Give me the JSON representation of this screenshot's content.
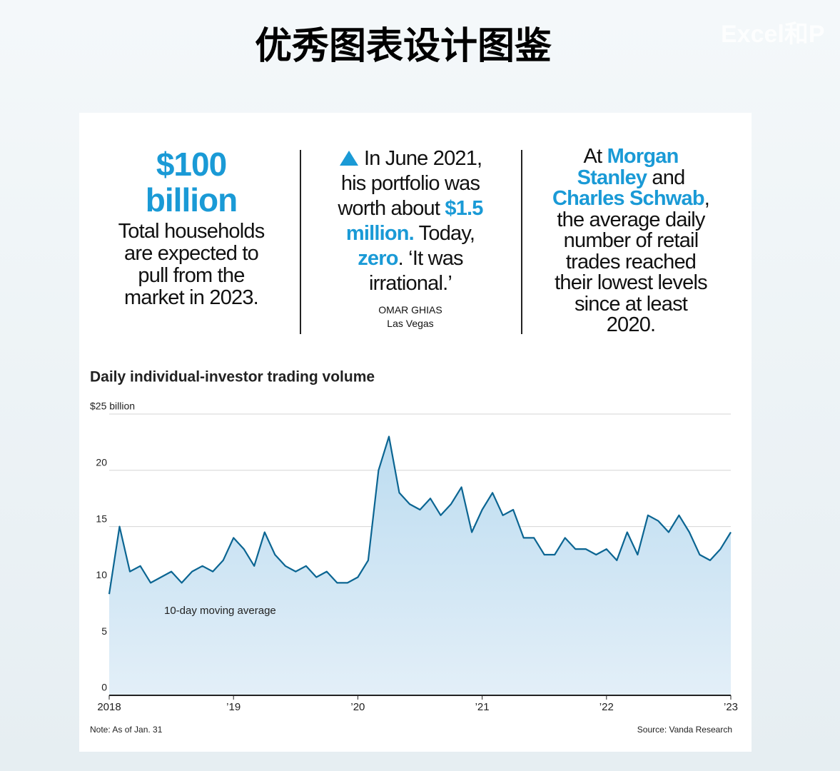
{
  "header": {
    "title": "优秀图表设计图鉴",
    "watermark": "Excel和P"
  },
  "panels": [
    {
      "figure": "$100 billion",
      "parts": [
        {
          "text": "Total households are expected to pull from the market in 2023.",
          "highlight": false
        }
      ]
    },
    {
      "parts": [
        {
          "text": "In June 2021, his portfolio was worth about ",
          "highlight": false
        },
        {
          "text": "$1.5 million.",
          "highlight": true
        },
        {
          "text": " Today, ",
          "highlight": false
        },
        {
          "text": "zero",
          "highlight": true
        },
        {
          "text": ". ‘It was irrational.’",
          "highlight": false
        }
      ],
      "name": "OMAR GHIAS",
      "place": "Las Vegas"
    },
    {
      "parts": [
        {
          "text": "At ",
          "highlight": false
        },
        {
          "text": "Morgan Stanley",
          "highlight": true
        },
        {
          "text": " and ",
          "highlight": false
        },
        {
          "text": "Charles Schwab",
          "highlight": true
        },
        {
          "text": ", the average daily number of retail trades reached their lowest levels since at least 2020.",
          "highlight": false
        }
      ]
    }
  ],
  "chart_data": {
    "type": "area",
    "title": "Daily individual-investor trading volume",
    "categories": [
      "2018",
      null,
      null,
      null,
      null,
      null,
      null,
      null,
      null,
      null,
      null,
      null,
      "’19",
      null,
      null,
      null,
      null,
      null,
      null,
      null,
      null,
      null,
      null,
      null,
      "’20",
      null,
      null,
      null,
      null,
      null,
      null,
      null,
      null,
      null,
      null,
      null,
      "’21",
      null,
      null,
      null,
      null,
      null,
      null,
      null,
      null,
      null,
      null,
      null,
      "’22",
      null,
      null,
      null,
      null,
      null,
      null,
      null,
      null,
      null,
      null,
      null,
      "’23"
    ],
    "series": [
      {
        "name": "10-day moving average",
        "color": "#0b6592",
        "values": [
          9,
          15,
          11,
          11.5,
          10,
          10.5,
          11,
          10,
          11,
          11.5,
          11,
          12,
          14,
          13,
          11.5,
          14.5,
          12.5,
          11.5,
          11,
          11.5,
          10.5,
          11,
          10,
          10,
          10.5,
          12,
          20,
          23,
          18,
          17,
          16.5,
          17.5,
          16,
          17,
          18.5,
          14.5,
          16.5,
          18,
          16,
          16.5,
          14,
          14,
          12.5,
          12.5,
          14,
          13,
          13,
          12.5,
          13,
          12,
          14.5,
          12.5,
          16,
          15.5,
          14.5,
          16,
          14.5,
          12.5,
          12,
          13,
          14.5
        ]
      }
    ],
    "area_color": "#bcdcf0",
    "ylim": [
      0,
      25
    ],
    "yticks": [
      0,
      5,
      10,
      15,
      20,
      {
        "value": 25,
        "label": "$25 billion"
      }
    ],
    "grid": true,
    "note": "Note: As of Jan. 31",
    "source": "Source: Vanda Research"
  }
}
